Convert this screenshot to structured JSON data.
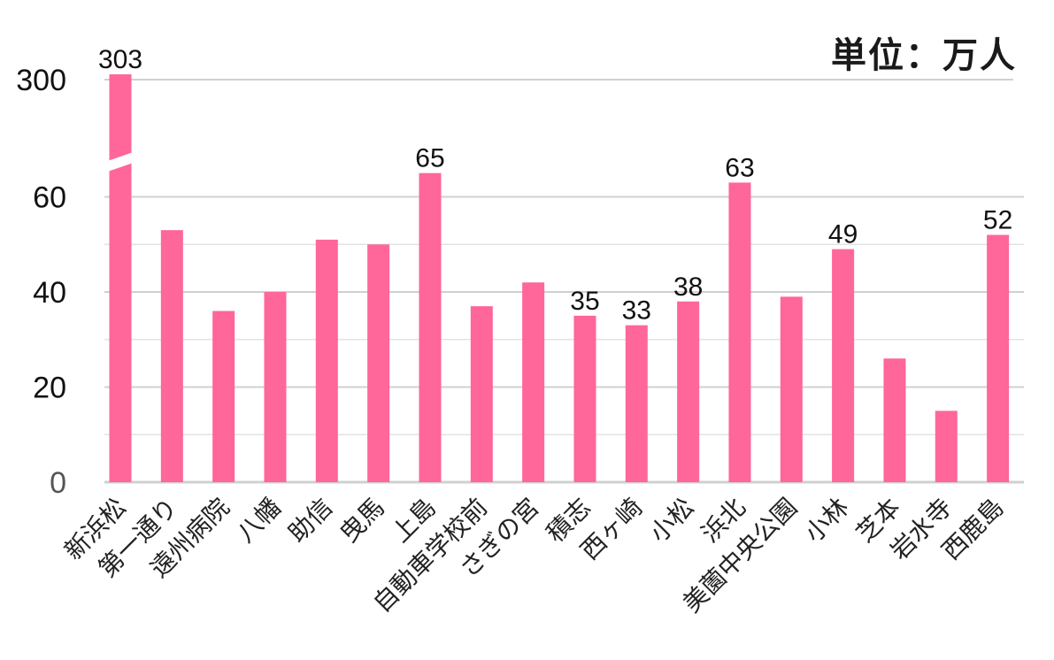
{
  "chart_data": {
    "type": "bar",
    "unit_label": "単位：万人",
    "categories": [
      "新浜松",
      "第一通り",
      "遠州病院",
      "八幡",
      "助信",
      "曳馬",
      "上島",
      "自動車学校前",
      "さぎの宮",
      "積志",
      "西ヶ崎",
      "小松",
      "浜北",
      "美薗中央公園",
      "小林",
      "芝本",
      "岩水寺",
      "西鹿島"
    ],
    "values": [
      303,
      53,
      36,
      40,
      51,
      50,
      65,
      37,
      42,
      35,
      33,
      38,
      63,
      39,
      49,
      26,
      15,
      52
    ],
    "data_labels": [
      "303",
      "",
      "",
      "",
      "",
      "",
      "65",
      "",
      "",
      "35",
      "33",
      "38",
      "63",
      "",
      "49",
      "",
      "",
      "52"
    ],
    "y_ticks": [
      "0",
      "20",
      "40",
      "60",
      "300"
    ],
    "axis_break": {
      "below": 65,
      "top_value": 300
    },
    "ylim": [
      0,
      303
    ],
    "bar_color": "#ff6699",
    "grid": true,
    "legend": "none"
  }
}
